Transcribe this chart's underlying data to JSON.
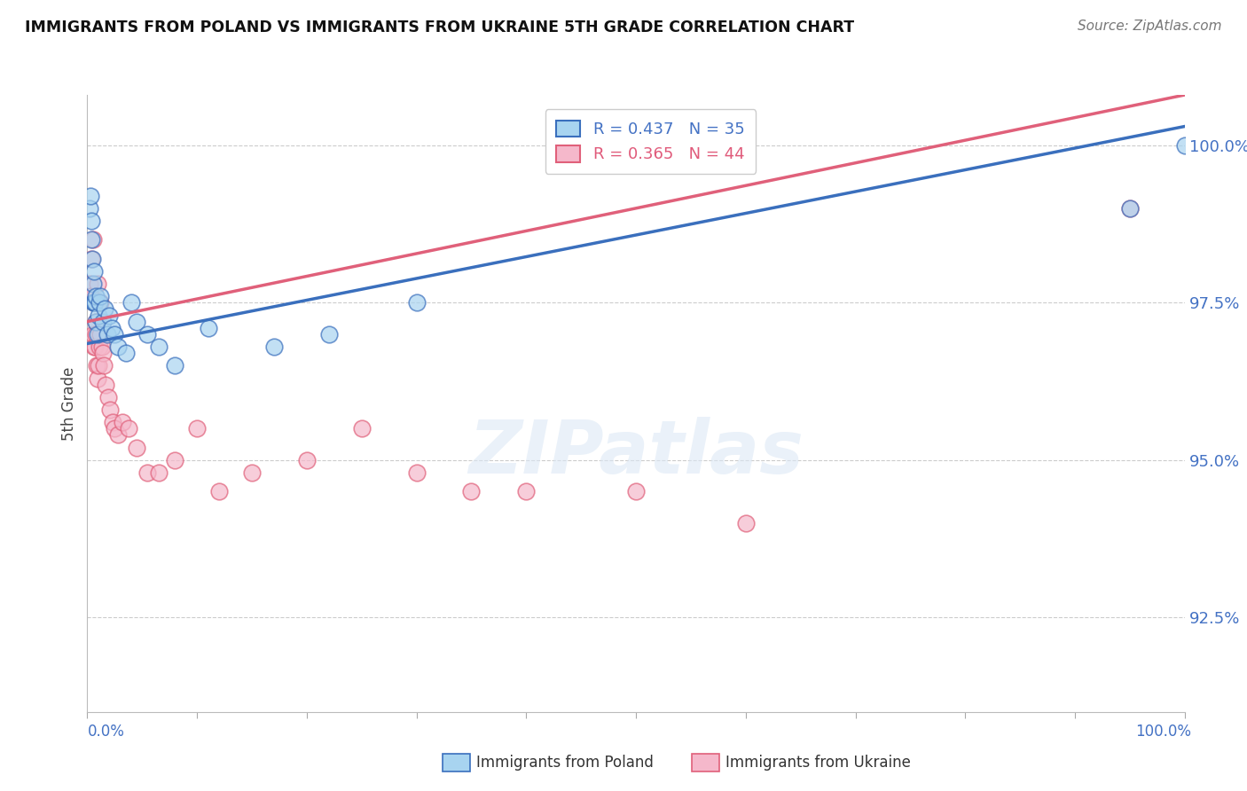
{
  "title": "IMMIGRANTS FROM POLAND VS IMMIGRANTS FROM UKRAINE 5TH GRADE CORRELATION CHART",
  "source": "Source: ZipAtlas.com",
  "ylabel": "5th Grade",
  "R_poland": 0.437,
  "N_poland": 35,
  "R_ukraine": 0.365,
  "N_ukraine": 44,
  "color_poland": "#a8d4f0",
  "color_ukraine": "#f5b8cb",
  "line_color_poland": "#3a6fbd",
  "line_color_ukraine": "#e0607a",
  "background_color": "#ffffff",
  "grid_color": "#cccccc",
  "legend_text_color_poland": "#4472c4",
  "legend_text_color_ukraine": "#e05a7a",
  "xlim": [
    0.0,
    100.0
  ],
  "ylim": [
    91.0,
    100.8
  ],
  "yticks": [
    100.0,
    97.5,
    95.0,
    92.5
  ],
  "poland_x": [
    0.2,
    0.3,
    0.35,
    0.4,
    0.45,
    0.5,
    0.55,
    0.6,
    0.65,
    0.7,
    0.75,
    0.8,
    0.9,
    1.0,
    1.1,
    1.2,
    1.4,
    1.6,
    1.8,
    2.0,
    2.2,
    2.5,
    2.8,
    3.5,
    4.0,
    4.5,
    5.5,
    6.5,
    8.0,
    11.0,
    17.0,
    22.0,
    30.0,
    95.0,
    100.0
  ],
  "poland_y": [
    99.0,
    99.2,
    98.8,
    98.5,
    98.2,
    97.5,
    97.8,
    98.0,
    97.5,
    97.5,
    97.6,
    97.2,
    97.0,
    97.3,
    97.5,
    97.6,
    97.2,
    97.4,
    97.0,
    97.3,
    97.1,
    97.0,
    96.8,
    96.7,
    97.5,
    97.2,
    97.0,
    96.8,
    96.5,
    97.1,
    96.8,
    97.0,
    97.5,
    99.0,
    100.0
  ],
  "ukraine_x": [
    0.2,
    0.3,
    0.4,
    0.5,
    0.55,
    0.6,
    0.65,
    0.7,
    0.75,
    0.8,
    0.85,
    0.9,
    0.95,
    1.0,
    1.05,
    1.1,
    1.15,
    1.2,
    1.3,
    1.4,
    1.5,
    1.7,
    1.9,
    2.1,
    2.3,
    2.5,
    2.8,
    3.2,
    3.8,
    4.5,
    5.5,
    6.5,
    8.0,
    10.0,
    12.0,
    15.0,
    20.0,
    25.0,
    30.0,
    35.0,
    40.0,
    50.0,
    60.0,
    95.0
  ],
  "ukraine_y": [
    97.8,
    97.6,
    98.2,
    98.5,
    97.0,
    97.5,
    96.8,
    96.8,
    97.2,
    97.0,
    96.5,
    96.3,
    97.8,
    97.5,
    96.5,
    96.8,
    97.0,
    97.5,
    96.8,
    96.7,
    96.5,
    96.2,
    96.0,
    95.8,
    95.6,
    95.5,
    95.4,
    95.6,
    95.5,
    95.2,
    94.8,
    94.8,
    95.0,
    95.5,
    94.5,
    94.8,
    95.0,
    95.5,
    94.8,
    94.5,
    94.5,
    94.5,
    94.0,
    99.0
  ],
  "trendline_poland_x0": 0.0,
  "trendline_poland_y0": 96.85,
  "trendline_poland_x1": 100.0,
  "trendline_poland_y1": 100.3,
  "trendline_ukraine_x0": 0.0,
  "trendline_ukraine_y0": 97.2,
  "trendline_ukraine_x1": 100.0,
  "trendline_ukraine_y1": 100.8
}
